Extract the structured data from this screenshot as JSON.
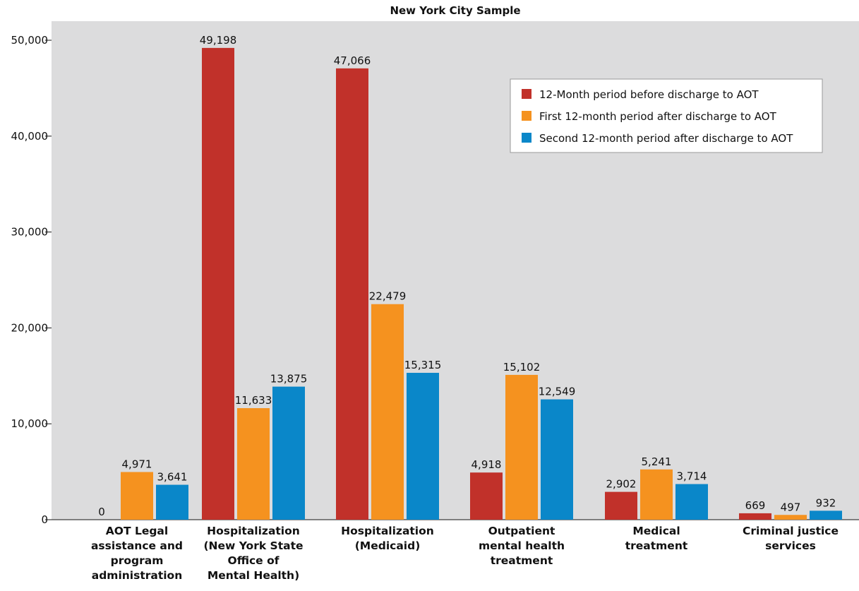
{
  "chart_data": {
    "type": "bar",
    "title": "New York City Sample",
    "categories": [
      [
        "AOT Legal",
        "assistance and",
        "program",
        "administration"
      ],
      [
        "Hospitalization",
        "(New York State",
        "Office of",
        "Mental Health)"
      ],
      [
        "Hospitalization",
        "(Medicaid)"
      ],
      [
        "Outpatient",
        "mental health",
        "treatment"
      ],
      [
        "Medical",
        "treatment"
      ],
      [
        "Criminal justice",
        "services"
      ]
    ],
    "series": [
      {
        "name": "12-Month period before discharge to AOT",
        "color": "#c1312a",
        "values": [
          0,
          49198,
          47066,
          4918,
          2902,
          669
        ],
        "labels": [
          "0",
          "49,198",
          "47,066",
          "4,918",
          "2,902",
          "669"
        ]
      },
      {
        "name": "First 12-month period after discharge to AOT",
        "color": "#f5921f",
        "values": [
          4971,
          11633,
          22479,
          15102,
          5241,
          497
        ],
        "labels": [
          "4,971",
          "11,633",
          "22,479",
          "15,102",
          "5,241",
          "497"
        ]
      },
      {
        "name": "Second 12-month period after discharge to AOT",
        "color": "#0a87c9",
        "values": [
          3641,
          13875,
          15315,
          12549,
          3714,
          932
        ],
        "labels": [
          "3,641",
          "13,875",
          "15,315",
          "12,549",
          "3,714",
          "932"
        ]
      }
    ],
    "yticks": [
      0,
      10000,
      20000,
      30000,
      40000,
      50000
    ],
    "ytick_labels": [
      "0",
      "10,000",
      "20,000",
      "30,000",
      "40,000",
      "50,000"
    ],
    "ylim": [
      0,
      50000
    ],
    "legend": "top-right",
    "grid": false,
    "background": "#dcdcdd"
  }
}
